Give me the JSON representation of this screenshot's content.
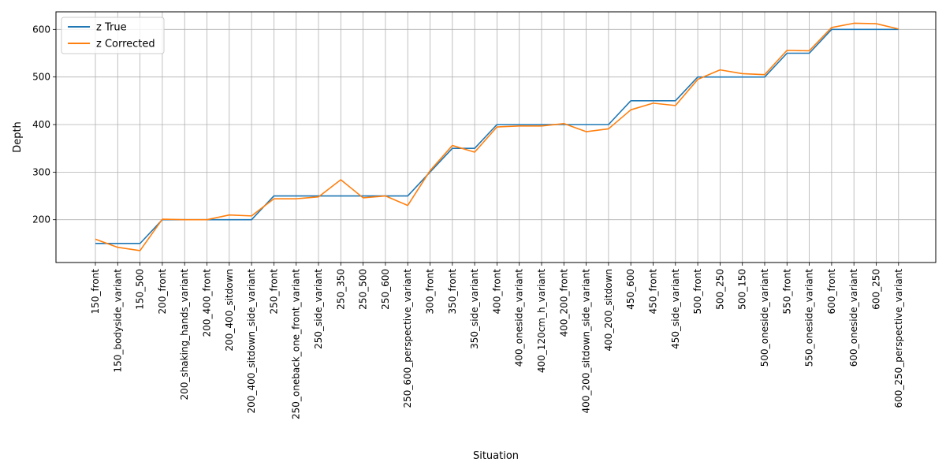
{
  "chart_data": {
    "type": "line",
    "title": "",
    "xlabel": "Situation",
    "ylabel": "Depth",
    "ylim": [
      110,
      637
    ],
    "yticks": [
      200,
      300,
      400,
      500,
      600
    ],
    "grid": true,
    "legend_position": "top-left",
    "categories": [
      "150_front",
      "150_bodyside_variant",
      "150_500",
      "200_front",
      "200_shaking_hands_variant",
      "200_400_front",
      "200_400_sitdown",
      "200_400_sitdown_side_variant",
      "250_front",
      "250_oneback_one_front_variant",
      "250_side_variant",
      "250_350",
      "250_500",
      "250_600",
      "250_600_perspective_variant",
      "300_front",
      "350_front",
      "350_side_variant",
      "400_front",
      "400_oneside_variant",
      "400_120cm_h_variant",
      "400_200_front",
      "400_200_sitdown_side_variant",
      "400_200_sitdown",
      "450_600",
      "450_front",
      "450_side_variant",
      "500_front",
      "500_250",
      "500_150",
      "500_oneside_variant",
      "550_front",
      "550_oneside_variant",
      "600_front",
      "600_oneside_variant",
      "600_250",
      "600_250_perspective_variant"
    ],
    "series": [
      {
        "name": "z True",
        "color": "#1f77b4",
        "values": [
          150,
          150,
          150,
          200,
          200,
          200,
          200,
          200,
          250,
          250,
          250,
          250,
          250,
          250,
          250,
          300,
          350,
          350,
          400,
          400,
          400,
          400,
          400,
          400,
          450,
          450,
          450,
          500,
          500,
          500,
          500,
          550,
          550,
          600,
          600,
          600,
          600
        ]
      },
      {
        "name": "z Corrected",
        "color": "#ff7f0e",
        "values": [
          159,
          142,
          135,
          201,
          200,
          200,
          210,
          208,
          244,
          244,
          248,
          284,
          246,
          250,
          230,
          303,
          356,
          342,
          395,
          397,
          397,
          402,
          385,
          391,
          431,
          445,
          440,
          495,
          515,
          507,
          505,
          556,
          555,
          604,
          613,
          612,
          601
        ]
      }
    ]
  }
}
